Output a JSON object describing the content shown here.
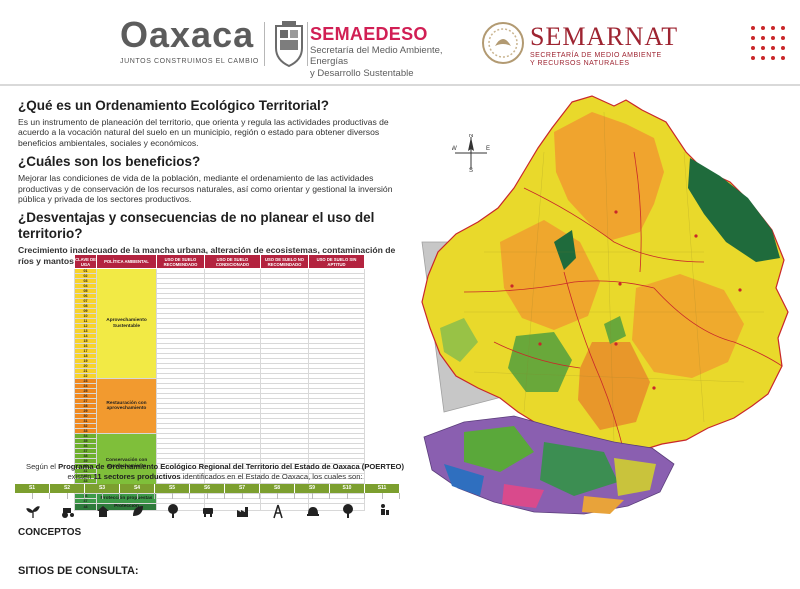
{
  "header": {
    "oaxaca_logo": {
      "word": "Oaxaca",
      "slogan": "JUNTOS CONSTRUIMOS EL CAMBIO"
    },
    "seal_caption": "",
    "semaedeso": {
      "title": "SEMAEDESO",
      "subtitle_line1": "Secretaría del Medio Ambiente, Energías",
      "subtitle_line2": "y Desarrollo Sustentable"
    },
    "semarnat": {
      "title": "SEMARNAT",
      "subtitle_line1": "SECRETARÍA DE MEDIO AMBIENTE",
      "subtitle_line2": "Y RECURSOS NATURALES"
    }
  },
  "sections": [
    {
      "heading": "¿Qué es un Ordenamiento Ecológico Territorial?",
      "body": "Es un instrumento de planeación del territorio, que orienta y regula las actividades productivas de acuerdo a la vocación natural del suelo en un municipio, región o estado para obtener diversos beneficios ambientales, sociales y económicos."
    },
    {
      "heading": "¿Cuáles son los beneficios?",
      "body": "Mejorar las condiciones de vida de la población, mediante el ordenamiento de las actividades productivas y de conservación de los recursos naturales, así como orientar y gestional la inversión pública y privada de los sectores productivos."
    },
    {
      "heading": "¿Desventajas y consecuencias de no planear el uso del territorio?",
      "body": "Crecimiento inadecuado de la mancha urbana, alteración de ecosistemas, contaminación de ríos y mantos acuíferos, además de propicia la escasez del agua."
    }
  ],
  "table": {
    "headers": [
      "CLAVE DE UGA",
      "POLÍTICA AMBIENTAL",
      "USO DE SUELO RECOMENDADO",
      "USO DE SUELO CONDICIONADO",
      "USO DE SUELO NO RECOMENDADO",
      "USO DE SUELO SIN APTITUD"
    ],
    "groups": [
      {
        "label": "Aprovechamiento Sustentable",
        "color": "#f2ea45",
        "key_color": "#f7d32c",
        "rows": 22,
        "start": 1
      },
      {
        "label": "Restauración con aprovechamiento",
        "color": "#f29a2f",
        "key_color": "#ef8a21",
        "rows": 11,
        "start": 23
      },
      {
        "label": "Conservación con aprovechamiento",
        "color": "#7fbf3a",
        "key_color": "#6fb02e",
        "rows": 12,
        "start": 34
      },
      {
        "label": "Protección propuestas",
        "color": "#3d9a48",
        "key_color": "#3d9a48",
        "rows": 2,
        "start": 46
      },
      {
        "label": "Protección",
        "color": "#2e7a3b",
        "key_color": "#2e7a3b",
        "rows": 1,
        "start": 48
      }
    ],
    "row_texts": []
  },
  "poerteo": {
    "line1_prefix": "Según el",
    "program": "Programa de Ordenamiento Ecológico Regional del Territorio del Estado de Oaxaca (POERTEO)",
    "line2_prefix": "existen",
    "sectors_count": "11 sectores productivos",
    "line2_suffix": "identificados en el Estado de Oaxaca, los cuales son:"
  },
  "sectors": {
    "heads": [
      "S1",
      "S2",
      "S3",
      "S4",
      "S5",
      "S6",
      "S7",
      "S8",
      "S9",
      "S10",
      "S11"
    ],
    "subs": [
      "",
      "",
      "",
      "",
      "",
      "",
      "",
      "",
      "",
      "",
      "",
      "",
      "",
      "",
      "",
      "",
      "",
      "",
      "",
      "",
      "",
      ""
    ],
    "icons": [
      "sprout-icon",
      "tractor-icon",
      "farmhouse-icon",
      "leaf-icon",
      "tree-icon",
      "cow-icon",
      "factory-icon",
      "tower-icon",
      "helmet-icon",
      "tree-icon",
      "traveler-icon"
    ]
  },
  "concepts": {
    "title": "CONCEPTOS",
    "text": ""
  },
  "sitios": {
    "label": "SITIOS DE CONSULTA:",
    "site1_title": "",
    "site1_url": "",
    "site2_title": "",
    "site2_url": ""
  },
  "map": {
    "compass": {
      "n": "N",
      "s": "S",
      "e": "E",
      "w": "W"
    },
    "region_labels": [
      "",
      "",
      "",
      "",
      "",
      "",
      "",
      ""
    ],
    "colors": {
      "state_outline": "#c9272a",
      "yellow": "#e9d92b",
      "orange": "#f0a12e",
      "green": "#69a83a",
      "dark_green": "#1f6b3c",
      "grey": "#c7c7c7"
    }
  }
}
